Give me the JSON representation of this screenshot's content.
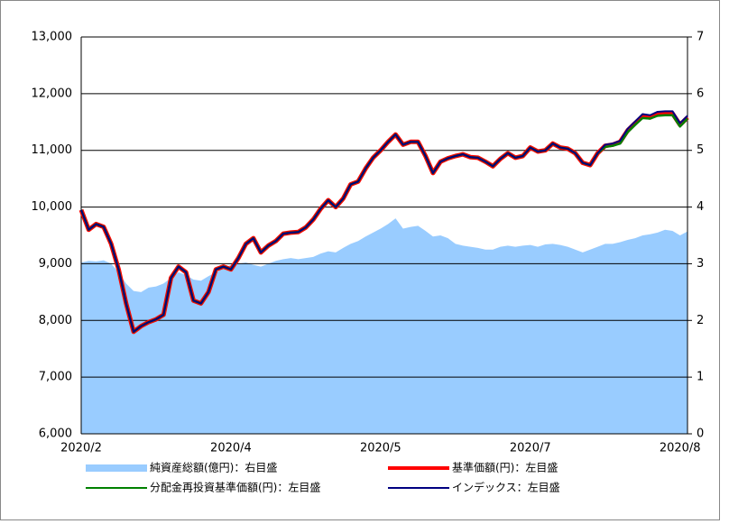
{
  "chart_data": {
    "type": "line",
    "categories": [
      "2020/2",
      null,
      null,
      null,
      null,
      null,
      null,
      null,
      null,
      null,
      null,
      null,
      null,
      null,
      null,
      null,
      null,
      null,
      null,
      null,
      "2020/4",
      null,
      null,
      null,
      null,
      null,
      null,
      null,
      null,
      null,
      null,
      null,
      null,
      null,
      null,
      null,
      null,
      null,
      null,
      null,
      "2020/5",
      null,
      null,
      null,
      null,
      null,
      null,
      null,
      null,
      null,
      null,
      null,
      null,
      null,
      null,
      null,
      null,
      null,
      null,
      null,
      "2020/7",
      null,
      null,
      null,
      null,
      null,
      null,
      null,
      null,
      null,
      null,
      null,
      null,
      null,
      null,
      null,
      null,
      null,
      null,
      null,
      "2020/8",
      null
    ],
    "ylim": [
      6000,
      13000
    ],
    "yticks": [
      {
        "value": 6000,
        "label": "6,000"
      },
      {
        "value": 7000,
        "label": "7,000"
      },
      {
        "value": 8000,
        "label": "8,000"
      },
      {
        "value": 9000,
        "label": "9,000"
      },
      {
        "value": 10000,
        "label": "10,000"
      },
      {
        "value": 11000,
        "label": "11,000"
      },
      {
        "value": 12000,
        "label": "12,000"
      },
      {
        "value": 13000,
        "label": "13,000"
      }
    ],
    "y2lim": [
      0,
      7
    ],
    "y2ticks": [
      0,
      1,
      2,
      3,
      4,
      5,
      6,
      7
    ],
    "grid": true,
    "legend": "bottom",
    "series": [
      {
        "name": "純資産総額(億円)：右目盛",
        "type": "area",
        "axis": "y2",
        "color": "#99ccff",
        "values": [
          3.02,
          3.05,
          3.04,
          3.06,
          3.0,
          2.85,
          2.65,
          2.52,
          2.5,
          2.58,
          2.6,
          2.65,
          2.75,
          2.85,
          2.8,
          2.72,
          2.7,
          2.78,
          2.85,
          2.92,
          2.98,
          3.0,
          3.02,
          2.98,
          2.95,
          3.0,
          3.05,
          3.08,
          3.1,
          3.08,
          3.1,
          3.12,
          3.18,
          3.22,
          3.2,
          3.28,
          3.35,
          3.4,
          3.48,
          3.55,
          3.62,
          3.7,
          3.8,
          3.62,
          3.65,
          3.67,
          3.58,
          3.48,
          3.5,
          3.45,
          3.35,
          3.32,
          3.3,
          3.28,
          3.25,
          3.25,
          3.3,
          3.32,
          3.3,
          3.32,
          3.33,
          3.3,
          3.34,
          3.35,
          3.33,
          3.3,
          3.25,
          3.2,
          3.25,
          3.3,
          3.35,
          3.35,
          3.38,
          3.42,
          3.45,
          3.5,
          3.52,
          3.55,
          3.6,
          3.58,
          3.5,
          3.57
        ]
      },
      {
        "name": "基準価額(円)：左目盛",
        "type": "line",
        "color": "#ff0000",
        "values": [
          9950,
          9600,
          9700,
          9650,
          9350,
          8900,
          8300,
          7800,
          7900,
          7970,
          8020,
          8100,
          8750,
          8950,
          8850,
          8350,
          8300,
          8500,
          8900,
          8950,
          8900,
          9100,
          9350,
          9450,
          9200,
          9320,
          9400,
          9530,
          9550,
          9560,
          9640,
          9780,
          9970,
          10120,
          10000,
          10150,
          10400,
          10450,
          10680,
          10870,
          11000,
          11150,
          11280,
          11100,
          11150,
          11150,
          10900,
          10600,
          10800,
          10860,
          10900,
          10930,
          10880,
          10870,
          10800,
          10720,
          10850,
          10950,
          10870,
          10900,
          11050,
          10980,
          11000,
          11120,
          11050,
          11030,
          10950,
          10780,
          10740,
          10950,
          11080,
          11100,
          11150,
          11350,
          11480,
          11600,
          11580,
          11640,
          11650,
          11650,
          11450,
          11580
        ]
      },
      {
        "name": "分配金再投資基準価額(円)：左目盛",
        "type": "line",
        "color": "#008000",
        "values": [
          9950,
          9600,
          9700,
          9650,
          9350,
          8900,
          8300,
          7800,
          7900,
          7970,
          8020,
          8100,
          8750,
          8950,
          8850,
          8350,
          8300,
          8500,
          8900,
          8950,
          8900,
          9100,
          9350,
          9450,
          9200,
          9320,
          9400,
          9530,
          9550,
          9560,
          9640,
          9780,
          9970,
          10120,
          10000,
          10150,
          10400,
          10450,
          10680,
          10870,
          11000,
          11150,
          11280,
          11100,
          11150,
          11150,
          10900,
          10600,
          10800,
          10860,
          10900,
          10930,
          10880,
          10870,
          10800,
          10720,
          10850,
          10950,
          10870,
          10900,
          11050,
          10980,
          11000,
          11120,
          11050,
          11030,
          10950,
          10780,
          10740,
          10950,
          11060,
          11080,
          11120,
          11320,
          11450,
          11570,
          11560,
          11610,
          11620,
          11620,
          11420,
          11560
        ]
      },
      {
        "name": "インデックス：左目盛",
        "type": "line",
        "color": "#000080",
        "values": [
          9950,
          9600,
          9700,
          9650,
          9350,
          8900,
          8300,
          7800,
          7900,
          7970,
          8020,
          8100,
          8750,
          8950,
          8850,
          8350,
          8300,
          8500,
          8900,
          8950,
          8900,
          9100,
          9350,
          9450,
          9200,
          9320,
          9400,
          9530,
          9550,
          9560,
          9640,
          9780,
          9970,
          10120,
          10000,
          10150,
          10400,
          10450,
          10680,
          10870,
          11000,
          11150,
          11280,
          11100,
          11150,
          11150,
          10900,
          10600,
          10800,
          10860,
          10900,
          10930,
          10880,
          10870,
          10800,
          10720,
          10850,
          10950,
          10870,
          10900,
          11050,
          10980,
          11000,
          11120,
          11050,
          11030,
          10950,
          10780,
          10740,
          10950,
          11100,
          11120,
          11170,
          11380,
          11510,
          11640,
          11620,
          11680,
          11690,
          11690,
          11480,
          11610
        ]
      }
    ]
  }
}
